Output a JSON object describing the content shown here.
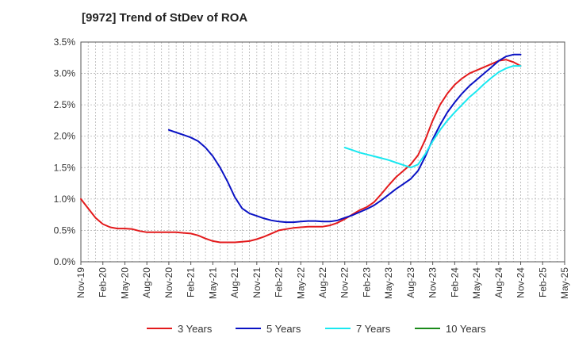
{
  "chart_data": {
    "type": "line",
    "title": "[9972]  Trend of StDev of ROA",
    "xlabel": "",
    "ylabel": "",
    "ylim": [
      0,
      3.5
    ],
    "ytick_labels": [
      "0.0%",
      "0.5%",
      "1.0%",
      "1.5%",
      "2.0%",
      "2.5%",
      "3.0%",
      "3.5%"
    ],
    "yticks": [
      0,
      0.5,
      1.0,
      1.5,
      2.0,
      2.5,
      3.0,
      3.5
    ],
    "x_tick_labels": [
      "Nov-19",
      "Feb-20",
      "May-20",
      "Aug-20",
      "Nov-20",
      "Feb-21",
      "May-21",
      "Aug-21",
      "Nov-21",
      "Feb-22",
      "May-22",
      "Aug-22",
      "Nov-22",
      "Feb-23",
      "May-23",
      "Aug-23",
      "Nov-23",
      "Feb-24",
      "May-24",
      "Aug-24",
      "Nov-24",
      "Feb-25",
      "May-25"
    ],
    "grid": true,
    "legend_position": "bottom",
    "series": [
      {
        "name": "3 Years",
        "color": "#e31a1c",
        "points": [
          [
            "Nov-19",
            1.0
          ],
          [
            "Dec-19",
            0.85
          ],
          [
            "Jan-20",
            0.7
          ],
          [
            "Feb-20",
            0.6
          ],
          [
            "Mar-20",
            0.55
          ],
          [
            "Apr-20",
            0.53
          ],
          [
            "May-20",
            0.53
          ],
          [
            "Jun-20",
            0.52
          ],
          [
            "Jul-20",
            0.49
          ],
          [
            "Aug-20",
            0.47
          ],
          [
            "Sep-20",
            0.47
          ],
          [
            "Oct-20",
            0.47
          ],
          [
            "Nov-20",
            0.47
          ],
          [
            "Dec-20",
            0.47
          ],
          [
            "Jan-21",
            0.46
          ],
          [
            "Feb-21",
            0.45
          ],
          [
            "Mar-21",
            0.42
          ],
          [
            "Apr-21",
            0.37
          ],
          [
            "May-21",
            0.33
          ],
          [
            "Jun-21",
            0.31
          ],
          [
            "Jul-21",
            0.31
          ],
          [
            "Aug-21",
            0.31
          ],
          [
            "Sep-21",
            0.32
          ],
          [
            "Oct-21",
            0.33
          ],
          [
            "Nov-21",
            0.36
          ],
          [
            "Dec-21",
            0.4
          ],
          [
            "Jan-22",
            0.45
          ],
          [
            "Feb-22",
            0.5
          ],
          [
            "Mar-22",
            0.52
          ],
          [
            "Apr-22",
            0.54
          ],
          [
            "May-22",
            0.55
          ],
          [
            "Jun-22",
            0.56
          ],
          [
            "Jul-22",
            0.56
          ],
          [
            "Aug-22",
            0.56
          ],
          [
            "Sep-22",
            0.58
          ],
          [
            "Oct-22",
            0.62
          ],
          [
            "Nov-22",
            0.68
          ],
          [
            "Dec-22",
            0.75
          ],
          [
            "Jan-23",
            0.82
          ],
          [
            "Feb-23",
            0.87
          ],
          [
            "Mar-23",
            0.95
          ],
          [
            "Apr-23",
            1.08
          ],
          [
            "May-23",
            1.22
          ],
          [
            "Jun-23",
            1.35
          ],
          [
            "Jul-23",
            1.45
          ],
          [
            "Aug-23",
            1.55
          ],
          [
            "Sep-23",
            1.7
          ],
          [
            "Oct-23",
            1.95
          ],
          [
            "Nov-23",
            2.25
          ],
          [
            "Dec-23",
            2.5
          ],
          [
            "Jan-24",
            2.68
          ],
          [
            "Feb-24",
            2.82
          ],
          [
            "Mar-24",
            2.92
          ],
          [
            "Apr-24",
            3.0
          ],
          [
            "May-24",
            3.05
          ],
          [
            "Jun-24",
            3.1
          ],
          [
            "Jul-24",
            3.15
          ],
          [
            "Aug-24",
            3.2
          ],
          [
            "Sep-24",
            3.22
          ],
          [
            "Oct-24",
            3.18
          ],
          [
            "Nov-24",
            3.12
          ]
        ]
      },
      {
        "name": "5 Years",
        "color": "#0a12c4",
        "points": [
          [
            "Nov-20",
            2.1
          ],
          [
            "Dec-20",
            2.06
          ],
          [
            "Jan-21",
            2.02
          ],
          [
            "Feb-21",
            1.98
          ],
          [
            "Mar-21",
            1.92
          ],
          [
            "Apr-21",
            1.82
          ],
          [
            "May-21",
            1.68
          ],
          [
            "Jun-21",
            1.5
          ],
          [
            "Jul-21",
            1.28
          ],
          [
            "Aug-21",
            1.03
          ],
          [
            "Sep-21",
            0.85
          ],
          [
            "Oct-21",
            0.77
          ],
          [
            "Nov-21",
            0.73
          ],
          [
            "Dec-21",
            0.69
          ],
          [
            "Jan-22",
            0.66
          ],
          [
            "Feb-22",
            0.64
          ],
          [
            "Mar-22",
            0.63
          ],
          [
            "Apr-22",
            0.63
          ],
          [
            "May-22",
            0.64
          ],
          [
            "Jun-22",
            0.65
          ],
          [
            "Jul-22",
            0.65
          ],
          [
            "Aug-22",
            0.64
          ],
          [
            "Sep-22",
            0.64
          ],
          [
            "Oct-22",
            0.66
          ],
          [
            "Nov-22",
            0.7
          ],
          [
            "Dec-22",
            0.74
          ],
          [
            "Jan-23",
            0.79
          ],
          [
            "Feb-23",
            0.84
          ],
          [
            "Mar-23",
            0.9
          ],
          [
            "Apr-23",
            0.98
          ],
          [
            "May-23",
            1.07
          ],
          [
            "Jun-23",
            1.16
          ],
          [
            "Jul-23",
            1.24
          ],
          [
            "Aug-23",
            1.32
          ],
          [
            "Sep-23",
            1.45
          ],
          [
            "Oct-23",
            1.68
          ],
          [
            "Nov-23",
            1.95
          ],
          [
            "Dec-23",
            2.18
          ],
          [
            "Jan-24",
            2.38
          ],
          [
            "Feb-24",
            2.54
          ],
          [
            "Mar-24",
            2.68
          ],
          [
            "Apr-24",
            2.8
          ],
          [
            "May-24",
            2.9
          ],
          [
            "Jun-24",
            3.0
          ],
          [
            "Jul-24",
            3.1
          ],
          [
            "Aug-24",
            3.2
          ],
          [
            "Sep-24",
            3.27
          ],
          [
            "Oct-24",
            3.3
          ],
          [
            "Nov-24",
            3.3
          ]
        ]
      },
      {
        "name": "7 Years",
        "color": "#19e8f0",
        "points": [
          [
            "Nov-22",
            1.82
          ],
          [
            "Dec-22",
            1.78
          ],
          [
            "Jan-23",
            1.74
          ],
          [
            "Feb-23",
            1.71
          ],
          [
            "Mar-23",
            1.68
          ],
          [
            "Apr-23",
            1.65
          ],
          [
            "May-23",
            1.62
          ],
          [
            "Jun-23",
            1.58
          ],
          [
            "Jul-23",
            1.54
          ],
          [
            "Aug-23",
            1.5
          ],
          [
            "Sep-23",
            1.55
          ],
          [
            "Oct-23",
            1.72
          ],
          [
            "Nov-23",
            1.92
          ],
          [
            "Dec-23",
            2.1
          ],
          [
            "Jan-24",
            2.25
          ],
          [
            "Feb-24",
            2.38
          ],
          [
            "Mar-24",
            2.5
          ],
          [
            "Apr-24",
            2.62
          ],
          [
            "May-24",
            2.72
          ],
          [
            "Jun-24",
            2.83
          ],
          [
            "Jul-24",
            2.93
          ],
          [
            "Aug-24",
            3.02
          ],
          [
            "Sep-24",
            3.08
          ],
          [
            "Oct-24",
            3.12
          ],
          [
            "Nov-24",
            3.12
          ]
        ]
      },
      {
        "name": "10 Years",
        "color": "#1a8a1a",
        "points": []
      }
    ]
  }
}
